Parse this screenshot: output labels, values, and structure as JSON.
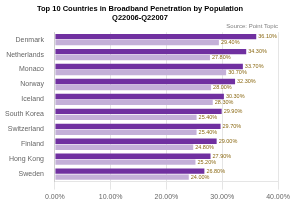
{
  "chart_data": {
    "type": "bar",
    "orientation": "horizontal",
    "title": "Top 10 Countries in Broadband Penetration by Population\nQ22006-Q22007",
    "annotation": "Source: Point Topic",
    "categories": [
      "Denmark",
      "Netherlands",
      "Monaco",
      "Norway",
      "Iceland",
      "South Korea",
      "Switzerland",
      "Finland",
      "Hong Kong",
      "Sweden"
    ],
    "series": [
      {
        "color": "#7030a0",
        "values": [
          36.1,
          34.3,
          33.7,
          32.3,
          30.3,
          29.9,
          29.7,
          29.0,
          27.9,
          26.8
        ],
        "value_labels": [
          "36.10%",
          "34.30%",
          "33.70%",
          "32.30%",
          "30.30%",
          "29.90%",
          "29.70%",
          "29.00%",
          "27.90%",
          "26.80%"
        ]
      },
      {
        "color": "#c4b0d8",
        "values": [
          29.4,
          27.8,
          30.7,
          28.0,
          28.3,
          25.4,
          25.4,
          24.8,
          25.2,
          24.0
        ],
        "value_labels": [
          "29.40%",
          "27.80%",
          "30.70%",
          "28.00%",
          "28.30%",
          "25.40%",
          "25.40%",
          "24.80%",
          "25.20%",
          "24.00%"
        ]
      }
    ],
    "xlim": [
      0,
      40
    ],
    "xticks": [
      {
        "value": 0,
        "label": "0.00%"
      },
      {
        "value": 10,
        "label": "10.00%"
      },
      {
        "value": 20,
        "label": "20.00%"
      },
      {
        "value": 30,
        "label": "30.00%"
      },
      {
        "value": 40,
        "label": "40.00%"
      }
    ],
    "grid": true,
    "data_labels": true
  }
}
